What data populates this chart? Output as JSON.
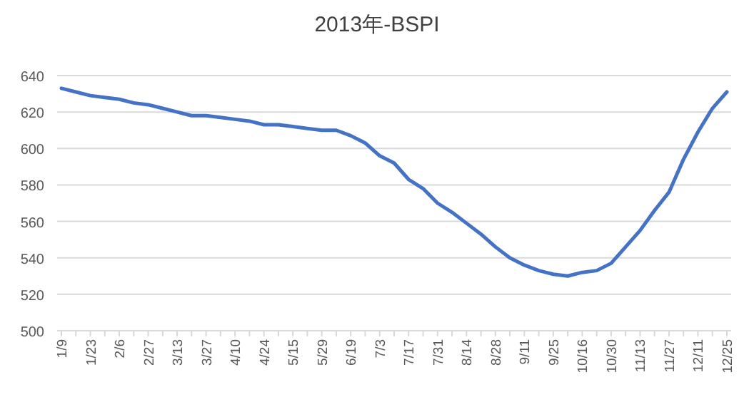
{
  "chart_data": {
    "type": "line",
    "title": "2013年-BSPI",
    "categories": [
      "1/9",
      null,
      "1/23",
      null,
      "2/6",
      null,
      "2/27",
      null,
      "3/13",
      null,
      "3/27",
      null,
      "4/10",
      null,
      "4/24",
      null,
      "5/15",
      null,
      "5/29",
      null,
      "6/19",
      null,
      "7/3",
      null,
      "7/17",
      null,
      "7/31",
      null,
      "8/14",
      null,
      "8/28",
      null,
      "9/11",
      null,
      "9/25",
      null,
      "10/16",
      null,
      "10/30",
      null,
      "11/13",
      null,
      "11/27",
      null,
      "12/11",
      null,
      "12/25"
    ],
    "series": [
      {
        "color": "#4472c4",
        "values": [
          633,
          631,
          629,
          628,
          627,
          625,
          624,
          622,
          620,
          618,
          618,
          617,
          616,
          615,
          613,
          613,
          612,
          611,
          610,
          610,
          607,
          603,
          596,
          592,
          583,
          578,
          570,
          565,
          559,
          553,
          546,
          540,
          536,
          533,
          531,
          530,
          532,
          533,
          537,
          546,
          555,
          566,
          576,
          594,
          609,
          622,
          631
        ]
      }
    ],
    "ylim": [
      500,
      640
    ],
    "yticks": [
      500,
      520,
      540,
      560,
      580,
      600,
      620,
      640
    ],
    "grid": "y",
    "marker": "none",
    "line_style": "solid"
  }
}
